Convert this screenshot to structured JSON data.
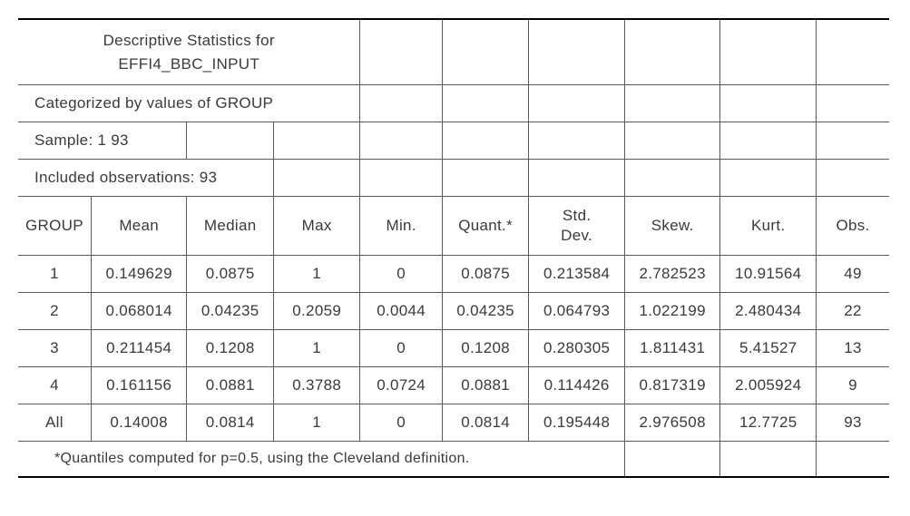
{
  "header": {
    "title_line1": "Descriptive Statistics for",
    "title_line2": "EFFI4_BBC_INPUT",
    "categorized": "Categorized by values of GROUP",
    "sample": "Sample: 1 93",
    "included": "Included observations: 93",
    "footnote": "*Quantiles computed for p=0.5, using the Cleveland definition."
  },
  "columns": [
    "GROUP",
    "Mean",
    "Median",
    "Max",
    "Min.",
    "Quant.*",
    "Std. Dev.",
    "Skew.",
    "Kurt.",
    "Obs."
  ],
  "rows": [
    {
      "group": "1",
      "mean": "0.149629",
      "median": "0.0875",
      "max": "1",
      "min": "0",
      "quant": "0.0875",
      "std": "0.213584",
      "skew": "2.782523",
      "kurt": "10.91564",
      "obs": "49"
    },
    {
      "group": "2",
      "mean": "0.068014",
      "median": "0.04235",
      "max": "0.2059",
      "min": "0.0044",
      "quant": "0.04235",
      "std": "0.064793",
      "skew": "1.022199",
      "kurt": "2.480434",
      "obs": "22"
    },
    {
      "group": "3",
      "mean": "0.211454",
      "median": "0.1208",
      "max": "1",
      "min": "0",
      "quant": "0.1208",
      "std": "0.280305",
      "skew": "1.811431",
      "kurt": "5.41527",
      "obs": "13"
    },
    {
      "group": "4",
      "mean": "0.161156",
      "median": "0.0881",
      "max": "0.3788",
      "min": "0.0724",
      "quant": "0.0881",
      "std": "0.114426",
      "skew": "0.817319",
      "kurt": "2.005924",
      "obs": "9"
    },
    {
      "group": "All",
      "mean": "0.14008",
      "median": "0.0814",
      "max": "1",
      "min": "0",
      "quant": "0.0814",
      "std": "0.195448",
      "skew": "2.976508",
      "kurt": "12.7725",
      "obs": "93"
    }
  ]
}
